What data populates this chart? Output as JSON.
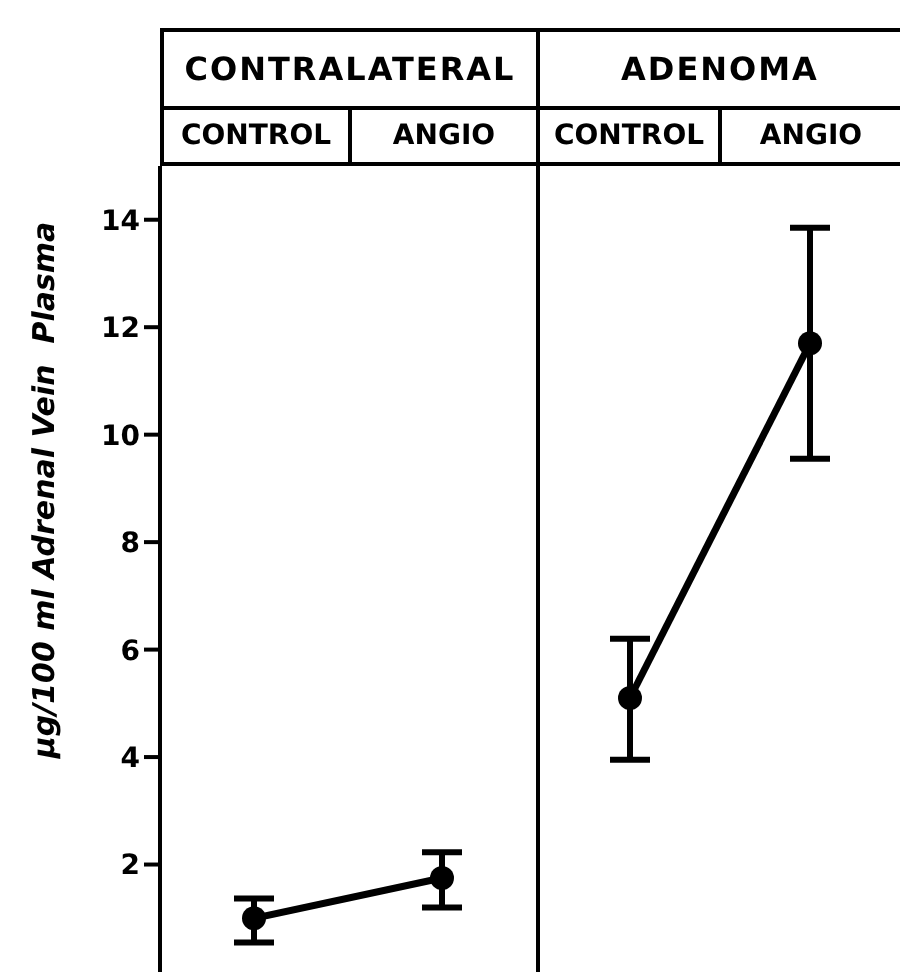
{
  "chart_data": [
    {
      "type": "line",
      "title": "CONTRALATERAL",
      "ylabel": "μg/100 ml Adrenal Vein  Plasma",
      "categories": [
        "CONTROL",
        "ANGIO"
      ],
      "ylim": [
        0,
        15
      ],
      "yticks": [
        2,
        4,
        6,
        8,
        10,
        12,
        14
      ],
      "marker": "circle",
      "line_style": "solid",
      "series": [
        {
          "color": "#000000",
          "values": [
            1.0,
            1.75
          ],
          "errors": [
            [
              0.55,
              1.37
            ],
            [
              1.2,
              2.23
            ]
          ]
        }
      ]
    },
    {
      "type": "line",
      "title": "ADENOMA",
      "categories": [
        "CONTROL",
        "ANGIO"
      ],
      "ylim": [
        0,
        15
      ],
      "yticks": [
        2,
        4,
        6,
        8,
        10,
        12,
        14
      ],
      "tick_labels": "x",
      "marker": "circle",
      "line_style": "solid",
      "series": [
        {
          "color": "#000000",
          "values": [
            5.1,
            11.7
          ],
          "errors": [
            [
              3.95,
              6.2
            ],
            [
              9.55,
              13.85
            ]
          ]
        }
      ]
    }
  ]
}
